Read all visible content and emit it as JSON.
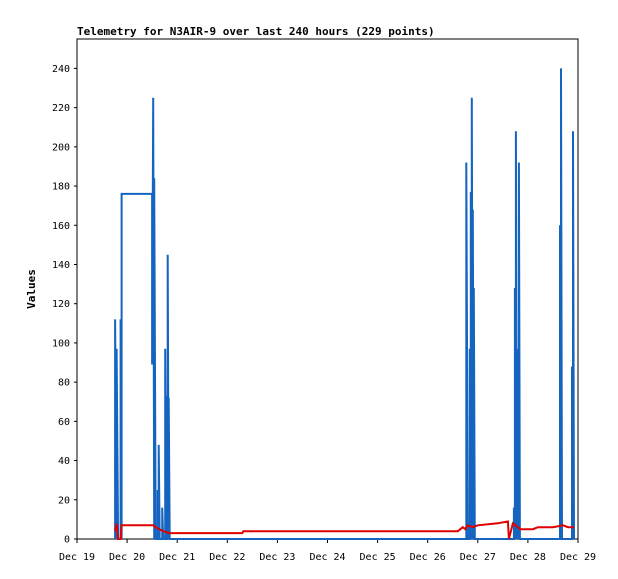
{
  "chart_data": {
    "type": "line",
    "title": "Telemetry for N3AIR-9 over last 240 hours (229 points)",
    "xlabel": "",
    "ylabel": "Values",
    "x_tick_labels": [
      "Dec 19",
      "Dec 20",
      "Dec 21",
      "Dec 22",
      "Dec 23",
      "Dec 24",
      "Dec 25",
      "Dec 26",
      "Dec 27",
      "Dec 28",
      "Dec 29"
    ],
    "y_ticks": [
      0,
      20,
      40,
      60,
      80,
      100,
      120,
      140,
      160,
      180,
      200,
      220,
      240
    ],
    "xlim": [
      0,
      10
    ],
    "ylim": [
      0,
      255
    ],
    "grid": false,
    "series": [
      {
        "color": "#1565c0",
        "values": [
          [
            0.76,
            0
          ],
          [
            0.76,
            112
          ],
          [
            0.79,
            0
          ],
          [
            0.79,
            97
          ],
          [
            0.82,
            0
          ],
          [
            0.87,
            0
          ],
          [
            0.87,
            112
          ],
          [
            0.89,
            0
          ],
          [
            0.89,
            176
          ],
          [
            1.5,
            176
          ],
          [
            1.5,
            89
          ],
          [
            1.52,
            225
          ],
          [
            1.54,
            0
          ],
          [
            1.54,
            184
          ],
          [
            1.57,
            0
          ],
          [
            1.61,
            0
          ],
          [
            1.61,
            25
          ],
          [
            1.63,
            0
          ],
          [
            1.63,
            48
          ],
          [
            1.65,
            0
          ],
          [
            1.7,
            0
          ],
          [
            1.7,
            16
          ],
          [
            1.72,
            0
          ],
          [
            1.76,
            0
          ],
          [
            1.76,
            97
          ],
          [
            1.78,
            0
          ],
          [
            1.8,
            0
          ],
          [
            1.8,
            73
          ],
          [
            1.81,
            0
          ],
          [
            1.81,
            145
          ],
          [
            1.83,
            0
          ],
          [
            1.83,
            72
          ],
          [
            1.85,
            0
          ],
          [
            7.77,
            0
          ],
          [
            7.77,
            192
          ],
          [
            7.8,
            0
          ],
          [
            7.84,
            0
          ],
          [
            7.84,
            97
          ],
          [
            7.86,
            0
          ],
          [
            7.86,
            177
          ],
          [
            7.88,
            0
          ],
          [
            7.88,
            225
          ],
          [
            7.9,
            0
          ],
          [
            7.9,
            168
          ],
          [
            7.92,
            0
          ],
          [
            7.92,
            128
          ],
          [
            7.94,
            0
          ],
          [
            8.72,
            0
          ],
          [
            8.72,
            16
          ],
          [
            8.74,
            0
          ],
          [
            8.74,
            128
          ],
          [
            8.76,
            0
          ],
          [
            8.76,
            208
          ],
          [
            8.78,
            0
          ],
          [
            8.78,
            67
          ],
          [
            8.8,
            0
          ],
          [
            8.8,
            97
          ],
          [
            8.82,
            0
          ],
          [
            8.82,
            192
          ],
          [
            8.84,
            0
          ],
          [
            9.64,
            0
          ],
          [
            9.64,
            160
          ],
          [
            9.66,
            0
          ],
          [
            9.66,
            240
          ],
          [
            9.68,
            0
          ],
          [
            9.88,
            0
          ],
          [
            9.88,
            88
          ],
          [
            9.9,
            0
          ],
          [
            9.9,
            208
          ],
          [
            9.92,
            0
          ]
        ]
      },
      {
        "color": "#e00000",
        "values": [
          [
            0.76,
            4
          ],
          [
            0.79,
            8
          ],
          [
            0.82,
            0
          ],
          [
            0.87,
            0
          ],
          [
            0.89,
            7
          ],
          [
            1.52,
            7
          ],
          [
            1.57,
            6
          ],
          [
            1.72,
            4
          ],
          [
            1.85,
            3
          ],
          [
            2.0,
            3
          ],
          [
            3.3,
            3
          ],
          [
            3.32,
            4
          ],
          [
            6.0,
            4
          ],
          [
            6.02,
            4
          ],
          [
            7.6,
            4
          ],
          [
            7.7,
            6
          ],
          [
            7.75,
            5
          ],
          [
            7.8,
            7
          ],
          [
            7.9,
            6
          ],
          [
            8.0,
            7
          ],
          [
            8.4,
            8
          ],
          [
            8.6,
            9
          ],
          [
            8.62,
            0
          ],
          [
            8.7,
            8
          ],
          [
            8.85,
            5
          ],
          [
            9.1,
            5
          ],
          [
            9.2,
            6
          ],
          [
            9.5,
            6
          ],
          [
            9.7,
            7
          ],
          [
            9.8,
            6
          ],
          [
            9.92,
            6
          ]
        ]
      }
    ]
  }
}
